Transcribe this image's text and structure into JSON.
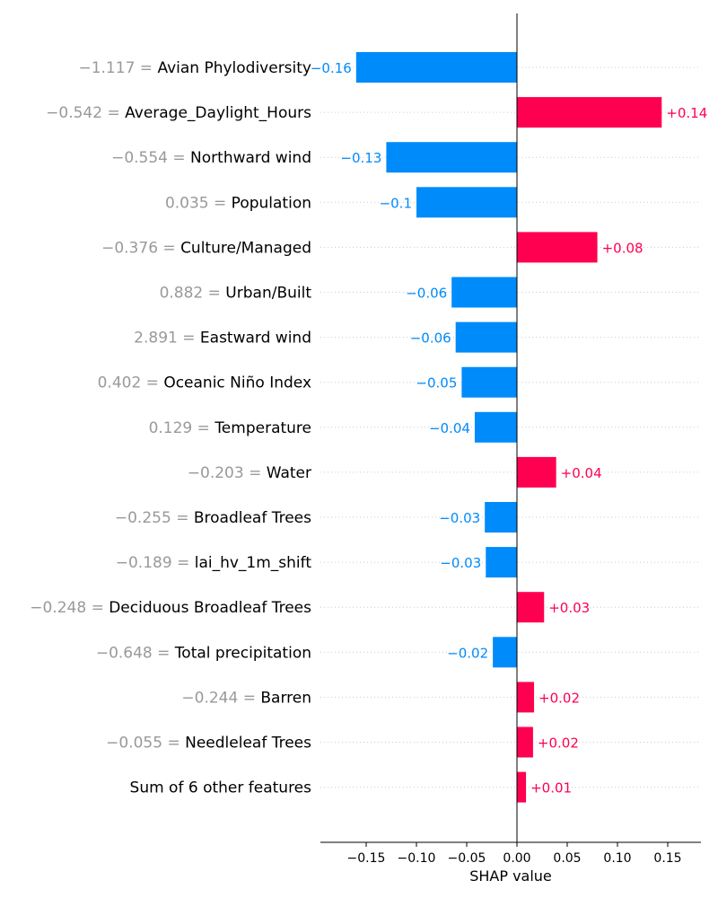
{
  "chart_data": {
    "type": "bar",
    "orientation": "horizontal",
    "xlabel": "SHAP value",
    "xlim": [
      -0.19,
      0.18
    ],
    "xticks": [
      -0.15,
      -0.1,
      -0.05,
      0.0,
      0.05,
      0.1,
      0.15
    ],
    "xtick_labels": [
      "−0.15",
      "−0.10",
      "−0.05",
      "0.00",
      "0.05",
      "0.10",
      "0.15"
    ],
    "grid": false,
    "colors": {
      "positive": "#ff0051",
      "negative": "#008bfb",
      "feature_value": "#999999"
    },
    "bars": [
      {
        "feature": "Avian Phylodiversity",
        "feature_value": "−1.117 = ",
        "value": -0.16,
        "value_label": "−0.16"
      },
      {
        "feature": "Average_Daylight_Hours",
        "feature_value": "−0.542 = ",
        "value": 0.144,
        "value_label": "+0.14"
      },
      {
        "feature": "Northward wind",
        "feature_value": "−0.554 = ",
        "value": -0.13,
        "value_label": "−0.13"
      },
      {
        "feature": "Population",
        "feature_value": "0.035 = ",
        "value": -0.1,
        "value_label": "−0.1"
      },
      {
        "feature": "Culture/Managed",
        "feature_value": "−0.376 = ",
        "value": 0.08,
        "value_label": "+0.08"
      },
      {
        "feature": "Urban/Built",
        "feature_value": "0.882 = ",
        "value": -0.065,
        "value_label": "−0.06"
      },
      {
        "feature": "Eastward wind",
        "feature_value": "2.891 = ",
        "value": -0.061,
        "value_label": "−0.06"
      },
      {
        "feature": "Oceanic Niño Index",
        "feature_value": "0.402 = ",
        "value": -0.055,
        "value_label": "−0.05"
      },
      {
        "feature": "Temperature",
        "feature_value": "0.129 = ",
        "value": -0.042,
        "value_label": "−0.04"
      },
      {
        "feature": "Water",
        "feature_value": "−0.203 = ",
        "value": 0.039,
        "value_label": "+0.04"
      },
      {
        "feature": "Broadleaf Trees",
        "feature_value": "−0.255 = ",
        "value": -0.032,
        "value_label": "−0.03"
      },
      {
        "feature": "lai_hv_1m_shift",
        "feature_value": "−0.189 = ",
        "value": -0.031,
        "value_label": "−0.03"
      },
      {
        "feature": "Deciduous Broadleaf Trees",
        "feature_value": "−0.248 = ",
        "value": 0.027,
        "value_label": "+0.03"
      },
      {
        "feature": "Total precipitation",
        "feature_value": "−0.648 = ",
        "value": -0.024,
        "value_label": "−0.02"
      },
      {
        "feature": "Barren",
        "feature_value": "−0.244 = ",
        "value": 0.017,
        "value_label": "+0.02"
      },
      {
        "feature": "Needleleaf Trees",
        "feature_value": "−0.055 = ",
        "value": 0.016,
        "value_label": "+0.02"
      },
      {
        "feature": "Sum of 6 other features",
        "feature_value": "",
        "value": 0.009,
        "value_label": "+0.01"
      }
    ]
  }
}
